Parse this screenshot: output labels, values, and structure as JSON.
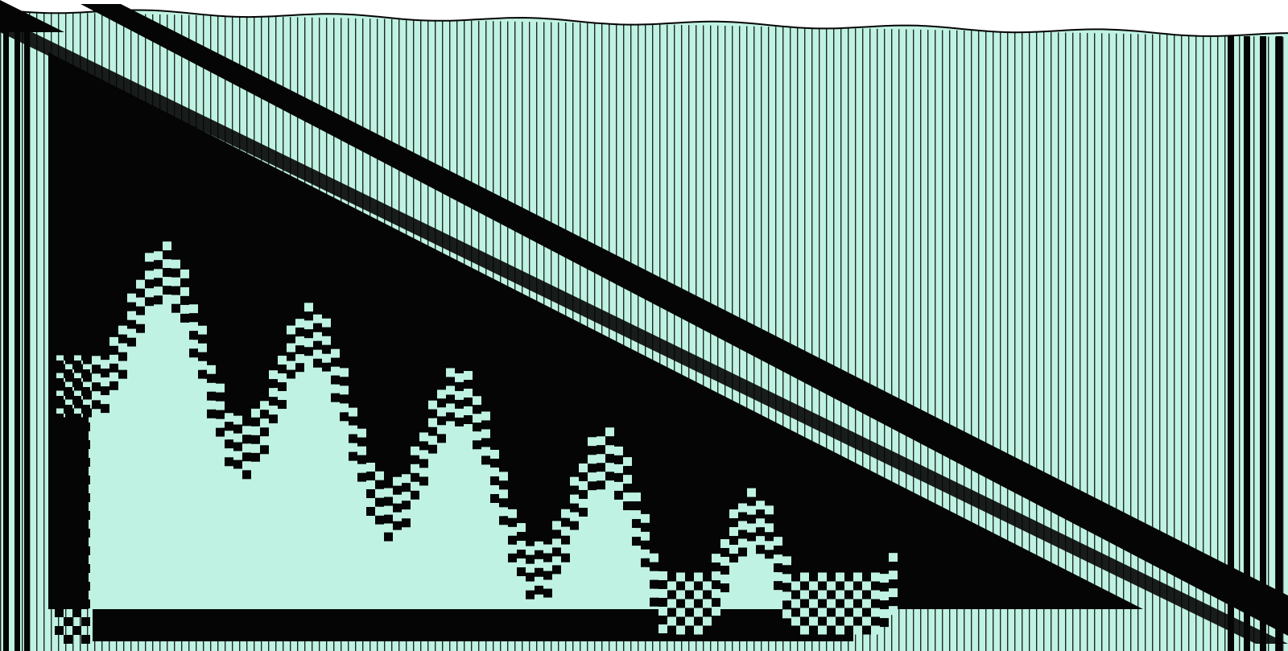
{
  "artwork": {
    "colors": {
      "background": "#ffffff",
      "mint": "#bff2e2",
      "ink": "#050505"
    },
    "dominant_motifs": [
      "vertical-stripes",
      "diagonal-band",
      "black-triangle-wedge",
      "checkerboard-wave"
    ]
  }
}
